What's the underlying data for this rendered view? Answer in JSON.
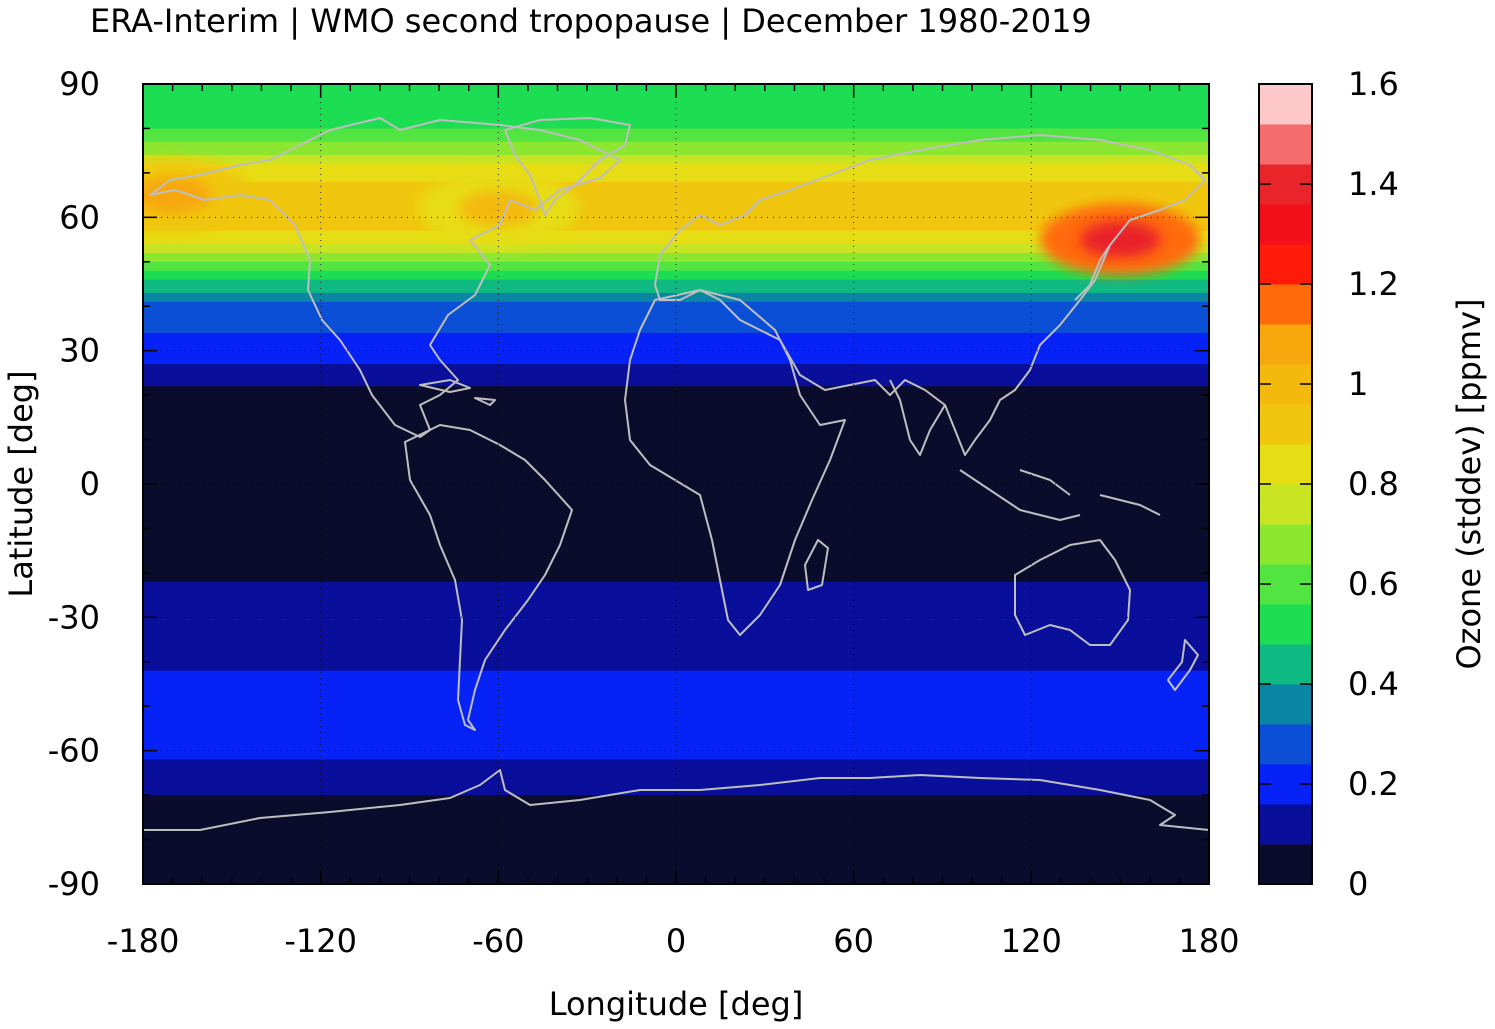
{
  "title": "ERA-Interim | WMO second tropopause | December 1980-2019",
  "map": {
    "xlabel": "Longitude [deg]",
    "ylabel": "Latitude [deg]",
    "xlim": [
      -180,
      180
    ],
    "ylim": [
      -90,
      90
    ],
    "xticks": [
      "-180",
      "-120",
      "-60",
      "0",
      "60",
      "120",
      "180"
    ],
    "yticks": [
      "90",
      "60",
      "30",
      "0",
      "-30",
      "-60",
      "-90"
    ],
    "grid": true,
    "coastline_color": "#bebebe"
  },
  "colorbar": {
    "label": "Ozone (stddev) [ppmv]",
    "range": [
      0,
      1.6
    ],
    "ticks": [
      "0",
      "0.2",
      "0.4",
      "0.6",
      "0.8",
      "1",
      "1.2",
      "1.4",
      "1.6"
    ],
    "colors": [
      "#0b0c2c",
      "#0a0f9b",
      "#0622f6",
      "#0b4fd6",
      "#0a86a4",
      "#0fba82",
      "#1ddd52",
      "#52e441",
      "#8de731",
      "#c9e423",
      "#e7dd14",
      "#f0c70e",
      "#f4b90d",
      "#f8a70c",
      "#ff6a0a",
      "#ff1a0a",
      "#f3101a",
      "#e9242a",
      "#f56c6c",
      "#ffc8c8"
    ]
  },
  "chart_data": {
    "type": "heatmap",
    "title": "ERA-Interim | WMO second tropopause | December 1980-2019",
    "xlabel": "Longitude [deg]",
    "ylabel": "Latitude [deg]",
    "xlim": [
      -180,
      180
    ],
    "ylim": [
      -90,
      90
    ],
    "colorbar_label": "Ozone (stddev) [ppmv]",
    "colorbar_range": [
      0,
      1.6
    ],
    "zonal_profile": {
      "lat": [
        90,
        80,
        75,
        70,
        65,
        60,
        55,
        50,
        45,
        40,
        35,
        30,
        25,
        20,
        10,
        0,
        -10,
        -20,
        -25,
        -30,
        -40,
        -45,
        -50,
        -55,
        -60,
        -65,
        -70,
        -80,
        -90
      ],
      "value": [
        0.5,
        0.55,
        0.7,
        0.85,
        0.95,
        0.95,
        0.85,
        0.65,
        0.45,
        0.3,
        0.25,
        0.18,
        0.15,
        0.05,
        0.03,
        0.03,
        0.03,
        0.05,
        0.12,
        0.15,
        0.15,
        0.18,
        0.22,
        0.22,
        0.18,
        0.12,
        0.08,
        0.05,
        0.05
      ]
    },
    "regional_maxima": [
      {
        "lon": 150,
        "lat": 55,
        "value": 1.4
      },
      {
        "lon": -60,
        "lat": 62,
        "value": 1.0
      },
      {
        "lon": -170,
        "lat": 65,
        "value": 1.05
      }
    ]
  }
}
